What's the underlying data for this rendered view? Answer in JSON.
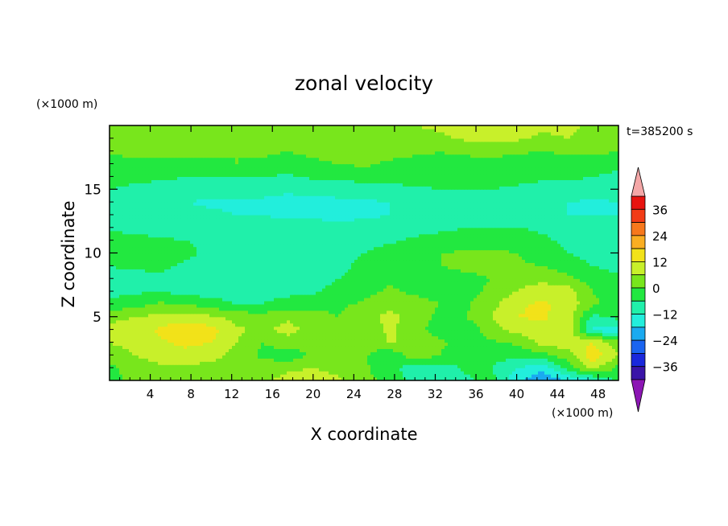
{
  "chart_data": {
    "type": "heatmap",
    "title": "zonal velocity",
    "xlabel": "X coordinate",
    "ylabel": "Z coordinate",
    "x_unit": "(×1000 m)",
    "y_unit": "(×1000 m)",
    "time_label": "t=385200 s",
    "xlim": [
      0,
      50
    ],
    "ylim": [
      0,
      20
    ],
    "x_ticks": [
      4,
      8,
      12,
      16,
      20,
      24,
      28,
      32,
      36,
      40,
      44,
      48
    ],
    "y_ticks": [
      5,
      10,
      15
    ],
    "colorbar": {
      "min": -42,
      "max": 42,
      "step": 6,
      "tick_values": [
        36,
        24,
        12,
        0,
        -12,
        -24,
        -36
      ],
      "tick_labels": [
        "36",
        "24",
        "12",
        "0",
        "−12",
        "−24",
        "−36"
      ],
      "over_color": "#f4a7a7",
      "under_color": "#8c16b4",
      "levels": [
        {
          "from": 36,
          "to": 42,
          "color": "#e8140f"
        },
        {
          "from": 30,
          "to": 36,
          "color": "#f23c16"
        },
        {
          "from": 24,
          "to": 30,
          "color": "#f7781c"
        },
        {
          "from": 18,
          "to": 24,
          "color": "#faae22"
        },
        {
          "from": 12,
          "to": 18,
          "color": "#f2e219"
        },
        {
          "from": 6,
          "to": 12,
          "color": "#c8f02a"
        },
        {
          "from": 0,
          "to": 6,
          "color": "#78e61c"
        },
        {
          "from": -6,
          "to": 0,
          "color": "#22e840"
        },
        {
          "from": -12,
          "to": -6,
          "color": "#20f0aa"
        },
        {
          "from": -18,
          "to": -12,
          "color": "#22eedc"
        },
        {
          "from": -24,
          "to": -18,
          "color": "#1aaaf0"
        },
        {
          "from": -30,
          "to": -24,
          "color": "#1a64f0"
        },
        {
          "from": -36,
          "to": -30,
          "color": "#1a28dc"
        },
        {
          "from": -42,
          "to": -36,
          "color": "#3a14a8"
        }
      ]
    },
    "field": {
      "x": [
        0,
        2.5,
        5,
        7.5,
        10,
        12.5,
        15,
        17.5,
        20,
        22.5,
        25,
        27.5,
        30,
        32.5,
        35,
        37.5,
        40,
        42.5,
        45,
        47.5,
        50
      ],
      "z": [
        0,
        1,
        2,
        3,
        4,
        5,
        6,
        7,
        8,
        9,
        10,
        11,
        12,
        13,
        14,
        15,
        16,
        17,
        18,
        19,
        20
      ],
      "values": [
        [
          -3,
          2,
          3,
          3,
          2,
          2,
          5,
          8,
          10,
          7,
          2,
          -2,
          -8,
          -9,
          -7,
          -4,
          -16,
          -24,
          -18,
          -14,
          -4
        ],
        [
          -2,
          4,
          5,
          5,
          4,
          3,
          3,
          5,
          6,
          4,
          1,
          -4,
          -9,
          -9,
          -5,
          -6,
          -12,
          -16,
          -4,
          8,
          -2
        ],
        [
          3,
          6,
          8,
          9,
          8,
          4,
          -1,
          -4,
          1,
          2,
          1,
          -5,
          4,
          0,
          -6,
          -4,
          -4,
          -2,
          3,
          16,
          6
        ],
        [
          6,
          8,
          11,
          14,
          12,
          6,
          0,
          3,
          2,
          1,
          0,
          7,
          4,
          1,
          -2,
          -1,
          1,
          8,
          10,
          12,
          2
        ],
        [
          8,
          10,
          13,
          17,
          14,
          7,
          5,
          8,
          4,
          1,
          2,
          7,
          2,
          -3,
          -5,
          4,
          8,
          10,
          10,
          -14,
          -16
        ],
        [
          4,
          6,
          8,
          9,
          7,
          4,
          3,
          5,
          2,
          0,
          3,
          8,
          4,
          -2,
          0,
          6,
          12,
          13,
          9,
          -8,
          -4
        ],
        [
          -4,
          -2,
          1,
          0,
          -3,
          -6,
          -6,
          -3,
          -2,
          -1,
          1,
          4,
          2,
          0,
          -1,
          4,
          11,
          13,
          10,
          1,
          -2
        ],
        [
          -8,
          -7,
          -6,
          -8,
          -9,
          -9,
          -9,
          -8,
          -7,
          -4,
          -2,
          1,
          -1,
          -2,
          -2,
          1,
          6,
          10,
          9,
          0,
          -4
        ],
        [
          -8,
          -8,
          -7,
          -9,
          -9,
          -10,
          -10,
          -9,
          -8,
          -6,
          -3,
          -1,
          -2,
          -3,
          -1,
          0,
          3,
          4,
          2,
          -3,
          -5
        ],
        [
          -6,
          -5,
          -5,
          -7,
          -8,
          -9,
          -9,
          -10,
          -10,
          -8,
          -4,
          -2,
          -1,
          0,
          1,
          1,
          1,
          0,
          -3,
          -6,
          -8
        ],
        [
          -1,
          0,
          -2,
          -5,
          -7,
          -8,
          -9,
          -10,
          -10,
          -9,
          -6,
          -3,
          -1,
          0,
          1,
          1,
          0,
          -3,
          -6,
          -8,
          -9
        ],
        [
          -3,
          -4,
          -5,
          -6,
          -7,
          -8,
          -8,
          -9,
          -10,
          -10,
          -9,
          -7,
          -5,
          -4,
          -4,
          -3,
          -2,
          -5,
          -7,
          -9,
          -10
        ],
        [
          -7,
          -8,
          -9,
          -9,
          -10,
          -10,
          -10,
          -10,
          -10,
          -11,
          -10,
          -9,
          -8,
          -7,
          -6,
          -6,
          -6,
          -7,
          -8,
          -10,
          -11
        ],
        [
          -9,
          -10,
          -11,
          -10,
          -11,
          -12,
          -12,
          -13,
          -13,
          -13,
          -13,
          -12,
          -11,
          -10,
          -9,
          -9,
          -10,
          -11,
          -12,
          -12,
          -12
        ],
        [
          -9,
          -10,
          -10,
          -12,
          -13,
          -13,
          -13,
          -14,
          -14,
          -13,
          -13,
          -12,
          -12,
          -11,
          -11,
          -10,
          -11,
          -12,
          -12,
          -13,
          -12
        ],
        [
          -6,
          -7,
          -8,
          -9,
          -10,
          -10,
          -10,
          -11,
          -10,
          -10,
          -9,
          -8,
          -7,
          -6,
          -6,
          -6,
          -7,
          -8,
          -8,
          -9,
          -9
        ],
        [
          -4,
          -5,
          -5,
          -6,
          -6,
          -6,
          -6,
          -7,
          -5,
          -4,
          -4,
          -3,
          -4,
          -3,
          -3,
          -3,
          -4,
          -5,
          -5,
          -6,
          -7
        ],
        [
          -2,
          -3,
          -3,
          -2,
          -1,
          0,
          -1,
          -2,
          -1,
          0,
          1,
          -1,
          -2,
          -1,
          -2,
          -2,
          -3,
          -4,
          -3,
          -4,
          -5
        ],
        [
          1,
          2,
          3,
          2,
          1,
          0,
          1,
          0,
          1,
          2,
          3,
          2,
          1,
          0,
          1,
          2,
          1,
          0,
          1,
          2,
          0
        ],
        [
          3,
          4,
          3,
          4,
          3,
          2,
          1,
          2,
          3,
          4,
          4,
          3,
          4,
          5,
          7,
          8,
          7,
          5,
          6,
          4,
          3
        ],
        [
          4,
          5,
          4,
          5,
          4,
          3,
          2,
          3,
          4,
          5,
          6,
          5,
          6,
          7,
          9,
          10,
          9,
          7,
          7,
          5,
          4
        ]
      ]
    }
  }
}
